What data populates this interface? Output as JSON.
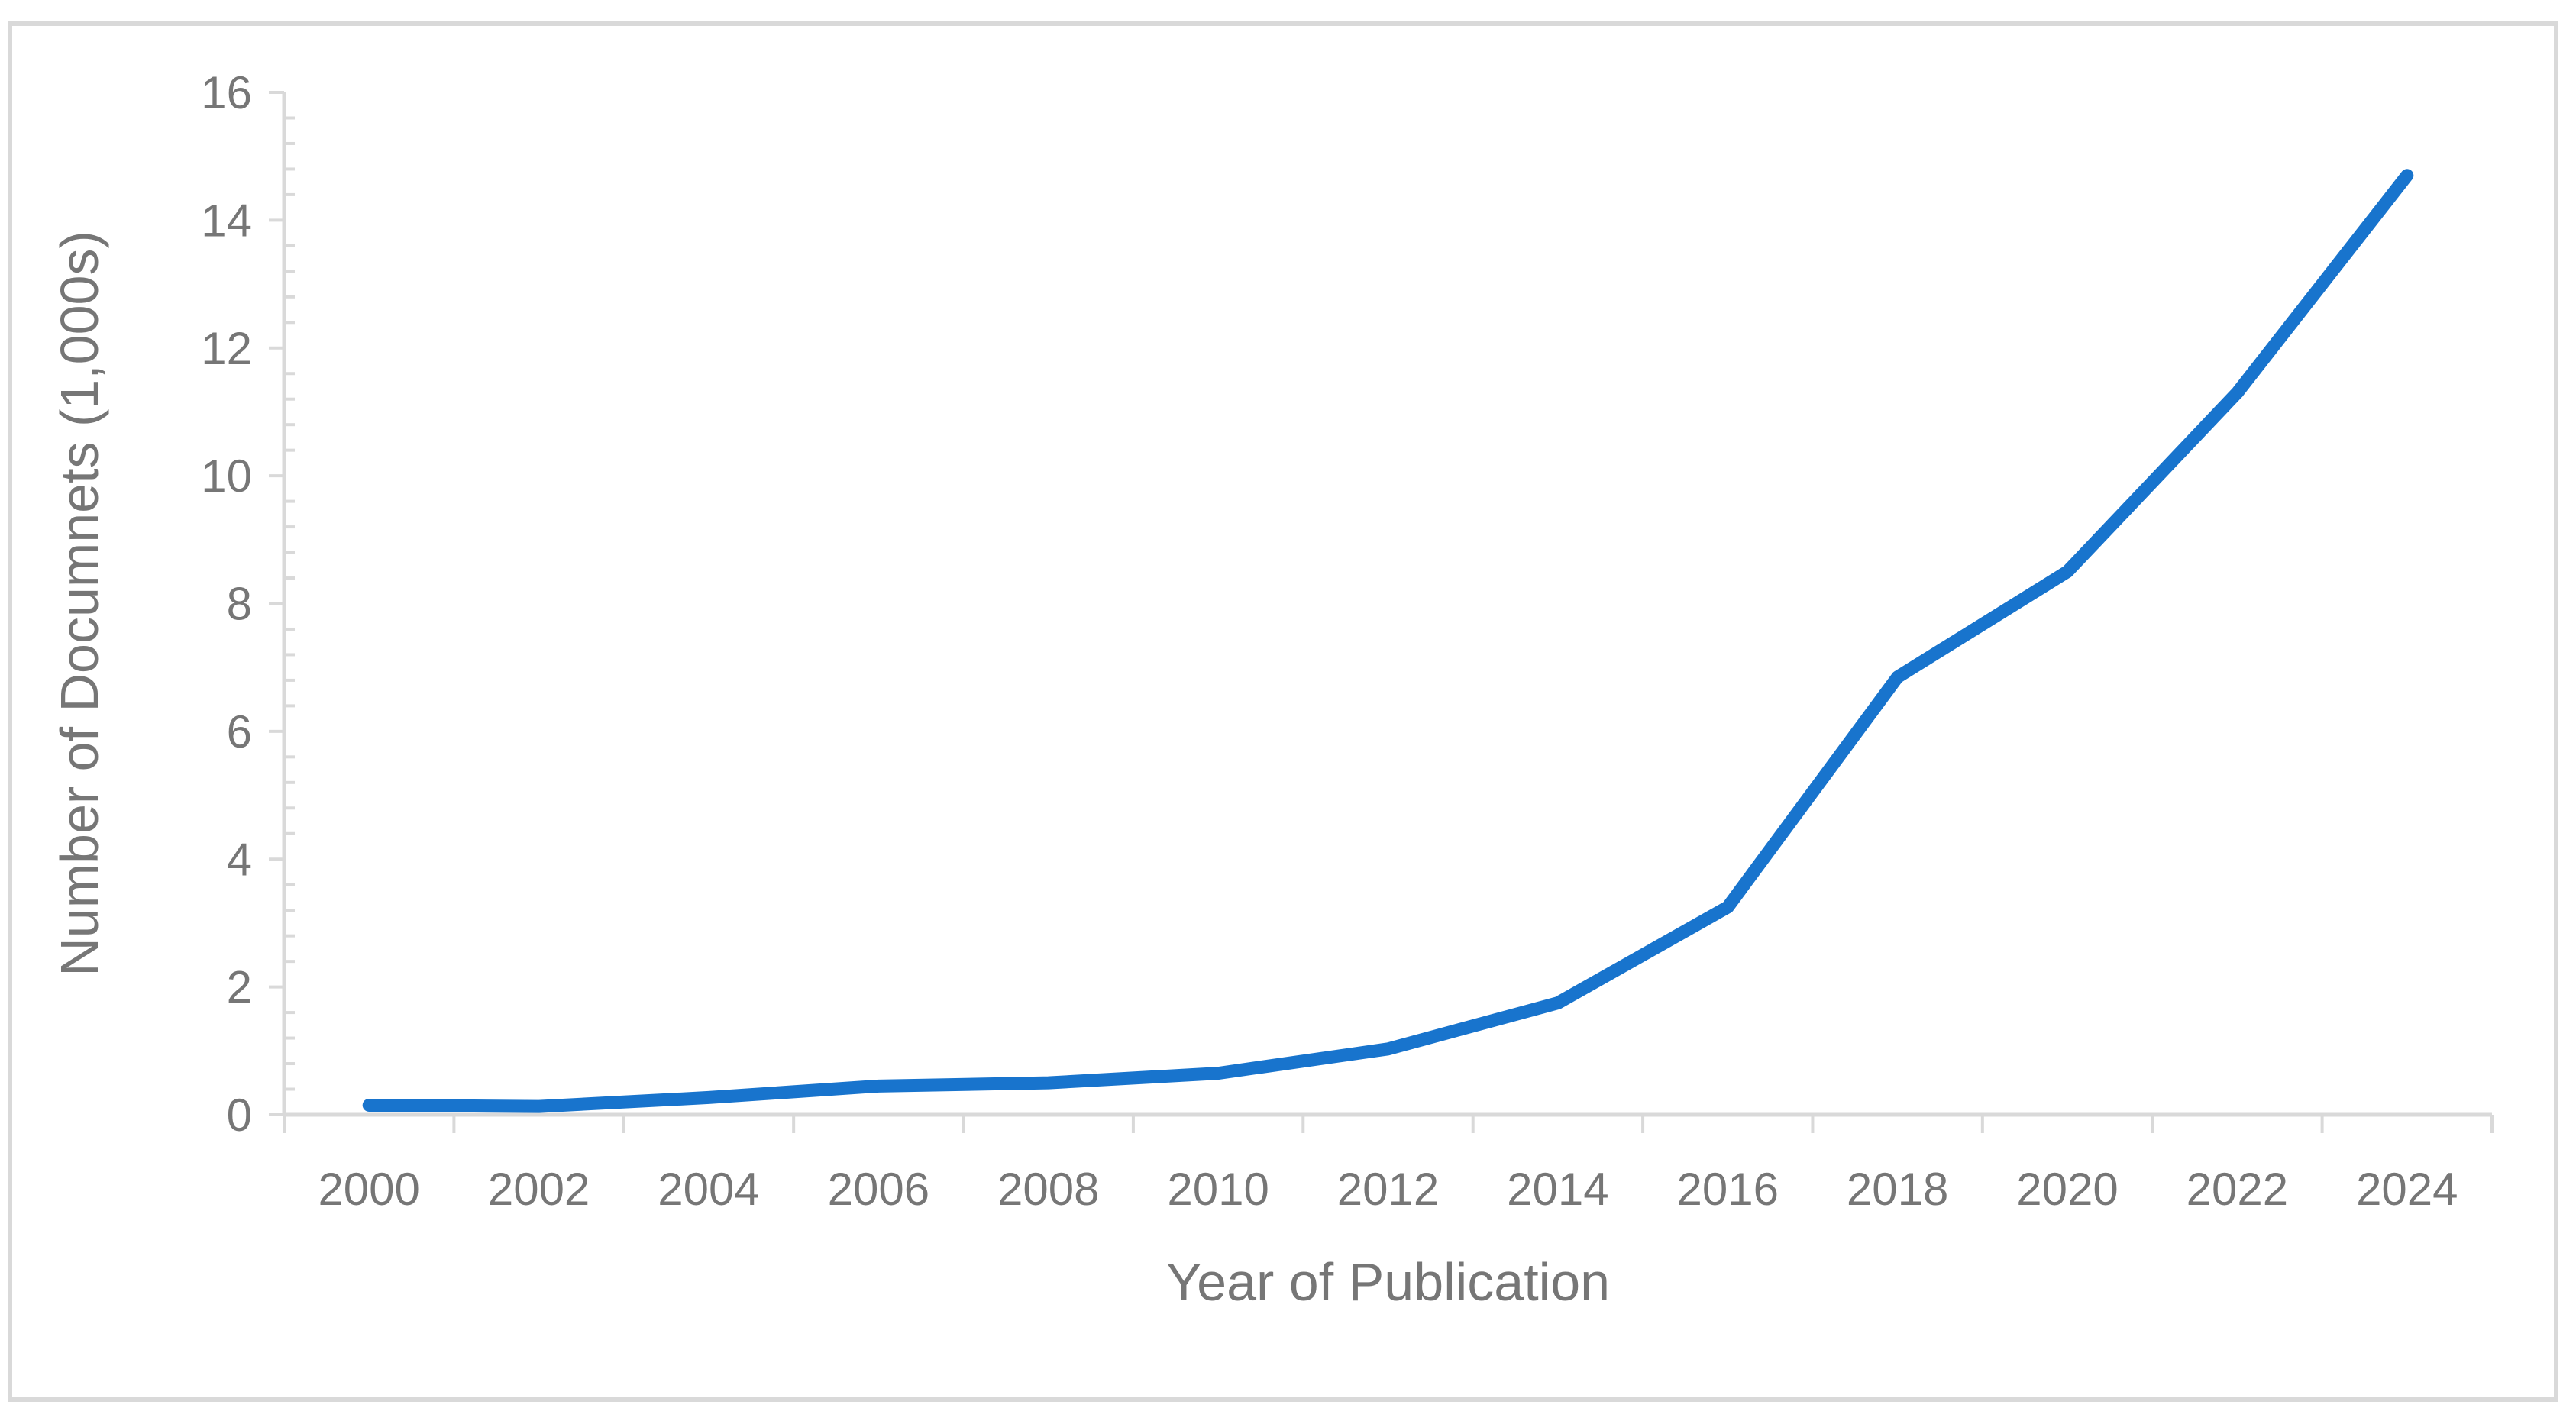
{
  "chart_data": {
    "type": "line",
    "title": "",
    "xlabel": "Year of Publication",
    "ylabel": "Number of Documnets (1,000s)",
    "x": [
      2000,
      2002,
      2004,
      2006,
      2008,
      2010,
      2012,
      2014,
      2016,
      2018,
      2020,
      2022,
      2024
    ],
    "x_tick_labels": [
      "2000",
      "2002",
      "2004",
      "2006",
      "2008",
      "2010",
      "2012",
      "2014",
      "2016",
      "2018",
      "2020",
      "2022",
      "2024"
    ],
    "y_tick_labels": [
      "0",
      "2",
      "4",
      "6",
      "8",
      "10",
      "12",
      "14",
      "16"
    ],
    "ylim": [
      0,
      16
    ],
    "grid": false,
    "legend": "none",
    "series": [
      {
        "values": [
          0.15,
          0.13,
          0.27,
          0.45,
          0.5,
          0.65,
          1.03,
          1.75,
          3.25,
          6.85,
          8.5,
          11.3,
          14.7
        ],
        "color": "#1874CD"
      }
    ],
    "colors": {
      "axis": "#d9d9d9",
      "text": "#767676",
      "frame": "#d9d9d9"
    }
  }
}
